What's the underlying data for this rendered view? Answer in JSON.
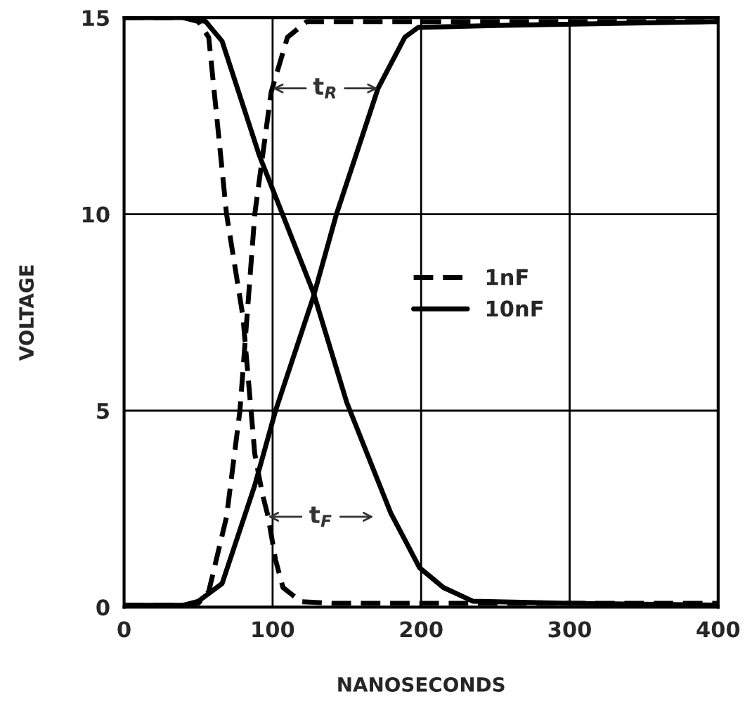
{
  "chart_data": {
    "type": "line",
    "xlabel": "NANOSECONDS",
    "ylabel": "VOLTAGE",
    "xlim": [
      0,
      400
    ],
    "ylim": [
      0,
      15
    ],
    "xticks": [
      0,
      100,
      200,
      300,
      400
    ],
    "yticks": [
      0,
      5,
      10,
      15
    ],
    "grid": true,
    "legend": "center right",
    "series": [
      {
        "name": "1nF",
        "color": "#000000",
        "line_style": "dashed",
        "x": [
          0,
          40,
          50,
          57,
          69,
          80,
          88,
          93,
          97,
          102,
          107,
          119,
          140,
          200,
          300,
          400
        ],
        "values": [
          15,
          15,
          14.9,
          14.5,
          10.0,
          7.4,
          3.9,
          2.9,
          2.3,
          1.2,
          0.5,
          0.14,
          0.1,
          0.1,
          0.1,
          0.1
        ]
      },
      {
        "color": "#000000",
        "line_style": "dashed",
        "x": [
          0,
          40,
          50,
          57,
          69,
          78,
          88,
          99,
          110,
          123,
          150,
          200,
          300,
          400
        ],
        "values": [
          0.05,
          0.05,
          0.1,
          0.4,
          2.3,
          5.0,
          10.0,
          13.1,
          14.5,
          14.9,
          14.9,
          14.9,
          14.9,
          14.9
        ]
      },
      {
        "name": "10nF",
        "color": "#000000",
        "line_style": "solid",
        "x": [
          0,
          40,
          55,
          66,
          91,
          127.5,
          150,
          179.5,
          199,
          215,
          235,
          300,
          400
        ],
        "values": [
          15,
          15,
          14.9,
          14.4,
          11.5,
          8.0,
          5.2,
          2.4,
          1.0,
          0.5,
          0.15,
          0.1,
          0.05
        ]
      },
      {
        "color": "#000000",
        "line_style": "solid",
        "x": [
          0,
          40,
          50,
          66,
          88,
          102,
          127.5,
          143,
          171,
          189,
          198,
          250,
          400
        ],
        "values": [
          0.05,
          0.05,
          0.15,
          0.6,
          3.1,
          5.0,
          7.9,
          10.0,
          13.2,
          14.5,
          14.75,
          14.8,
          14.9
        ]
      }
    ],
    "annotations": [
      {
        "text": "t$_{R}$",
        "x": 100,
        "y": 13.2
      },
      {
        "text": "t$_{F}$",
        "x": 97,
        "y": 2.3
      }
    ]
  }
}
